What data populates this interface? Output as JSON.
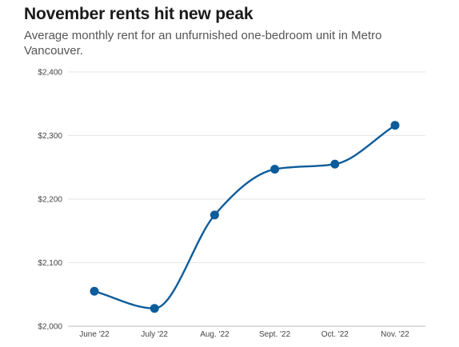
{
  "header": {
    "title": "November rents hit new peak",
    "subtitle": "Average monthly rent for an unfurnished one-bedroom unit in Metro Vancouver."
  },
  "chart_data": {
    "type": "line",
    "title": "November rents hit new peak",
    "subtitle": "Average monthly rent for an unfurnished one-bedroom unit in Metro Vancouver.",
    "categories": [
      "June '22",
      "July '22",
      "Aug. '22",
      "Sept. '22",
      "Oct. '22",
      "Nov. '22"
    ],
    "values": [
      2055,
      2028,
      2175,
      2247,
      2255,
      2316
    ],
    "ylim": [
      2000,
      2400
    ],
    "yticks": [
      2000,
      2100,
      2200,
      2300,
      2400
    ],
    "ytick_labels": [
      "$2,000",
      "$2,100",
      "$2,200",
      "$2,300",
      "$2,400"
    ],
    "grid": true,
    "line_color": "#0d5c9b",
    "grid_color": "#e6e6e6",
    "axis_color": "#bbbbbb"
  }
}
